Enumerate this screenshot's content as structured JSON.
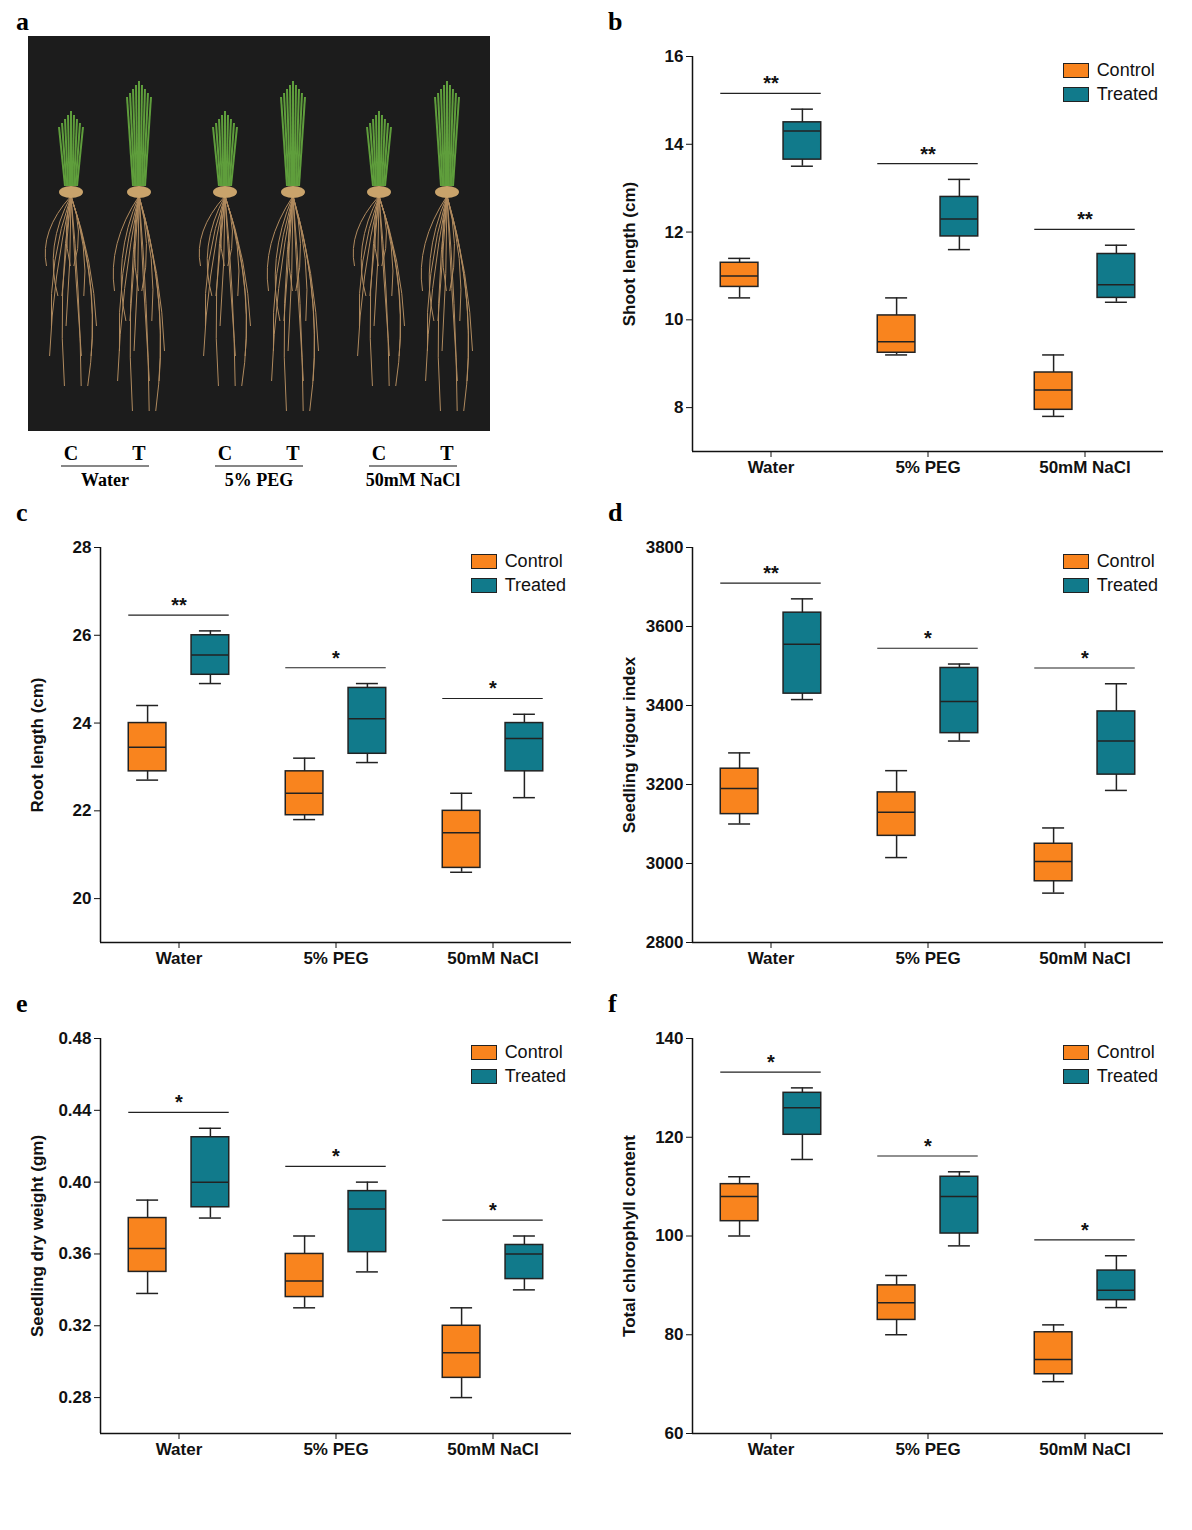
{
  "panel_a": {
    "panel": "a",
    "labels": [
      {
        "group": "Water",
        "left": "C",
        "right": "T"
      },
      {
        "group": "5% PEG",
        "left": "C",
        "right": "T"
      },
      {
        "group": "50mM NaCl",
        "left": "C",
        "right": "T"
      }
    ]
  },
  "chart_data": [
    {
      "type": "box",
      "panel": "b",
      "y_label": "Shoot length (cm)",
      "categories": [
        "Water",
        "5% PEG",
        "50mM NaCl"
      ],
      "series": [
        {
          "name": "Control",
          "color": "#f9841e",
          "values": [
            {
              "min": 10.5,
              "q1": 10.75,
              "median": 11.0,
              "q3": 11.3,
              "max": 11.4
            },
            {
              "min": 9.2,
              "q1": 9.25,
              "median": 9.5,
              "q3": 10.1,
              "max": 10.5
            },
            {
              "min": 7.8,
              "q1": 7.95,
              "median": 8.4,
              "q3": 8.8,
              "max": 9.2
            }
          ]
        },
        {
          "name": "Treated",
          "color": "#117a8b",
          "values": [
            {
              "min": 13.5,
              "q1": 13.65,
              "median": 14.3,
              "q3": 14.5,
              "max": 14.8
            },
            {
              "min": 11.6,
              "q1": 11.9,
              "median": 12.3,
              "q3": 12.8,
              "max": 13.2
            },
            {
              "min": 10.4,
              "q1": 10.5,
              "median": 10.8,
              "q3": 11.5,
              "max": 11.7
            }
          ]
        }
      ],
      "significance": [
        "**",
        "**",
        "**"
      ],
      "ylim": [
        7,
        16
      ],
      "yticks": [
        8,
        10,
        12,
        14,
        16
      ],
      "legend": "top-right"
    },
    {
      "type": "box",
      "panel": "c",
      "y_label": "Root length (cm)",
      "categories": [
        "Water",
        "5% PEG",
        "50mM NaCl"
      ],
      "series": [
        {
          "name": "Control",
          "color": "#f9841e",
          "values": [
            {
              "min": 22.7,
              "q1": 22.9,
              "median": 23.45,
              "q3": 24.0,
              "max": 24.4
            },
            {
              "min": 21.8,
              "q1": 21.9,
              "median": 22.4,
              "q3": 22.9,
              "max": 23.2
            },
            {
              "min": 20.6,
              "q1": 20.7,
              "median": 21.5,
              "q3": 22.0,
              "max": 22.4
            }
          ]
        },
        {
          "name": "Treated",
          "color": "#117a8b",
          "values": [
            {
              "min": 24.9,
              "q1": 25.1,
              "median": 25.55,
              "q3": 26.0,
              "max": 26.1
            },
            {
              "min": 23.1,
              "q1": 23.3,
              "median": 24.1,
              "q3": 24.8,
              "max": 24.9
            },
            {
              "min": 22.3,
              "q1": 22.9,
              "median": 23.65,
              "q3": 24.0,
              "max": 24.2
            }
          ]
        }
      ],
      "significance": [
        "**",
        "*",
        "*"
      ],
      "ylim": [
        19,
        28
      ],
      "yticks": [
        20,
        22,
        24,
        26,
        28
      ],
      "legend": "top-right"
    },
    {
      "type": "box",
      "panel": "d",
      "y_label": "Seedling vigour index",
      "categories": [
        "Water",
        "5% PEG",
        "50mM NaCl"
      ],
      "series": [
        {
          "name": "Control",
          "color": "#f9841e",
          "values": [
            {
              "min": 3100,
              "q1": 3125,
              "median": 3190,
              "q3": 3240,
              "max": 3280
            },
            {
              "min": 3015,
              "q1": 3070,
              "median": 3130,
              "q3": 3180,
              "max": 3235
            },
            {
              "min": 2925,
              "q1": 2955,
              "median": 3005,
              "q3": 3050,
              "max": 3090
            }
          ]
        },
        {
          "name": "Treated",
          "color": "#117a8b",
          "values": [
            {
              "min": 3415,
              "q1": 3430,
              "median": 3555,
              "q3": 3635,
              "max": 3670
            },
            {
              "min": 3310,
              "q1": 3330,
              "median": 3410,
              "q3": 3495,
              "max": 3505
            },
            {
              "min": 3185,
              "q1": 3225,
              "median": 3310,
              "q3": 3385,
              "max": 3455
            }
          ]
        }
      ],
      "significance": [
        "**",
        "*",
        "*"
      ],
      "ylim": [
        2800,
        3800
      ],
      "yticks": [
        2800,
        3000,
        3200,
        3400,
        3600,
        3800
      ],
      "legend": "top-right"
    },
    {
      "type": "box",
      "panel": "e",
      "y_label": "Seedling dry weight (gm)",
      "categories": [
        "Water",
        "5% PEG",
        "50mM NaCl"
      ],
      "series": [
        {
          "name": "Control",
          "color": "#f9841e",
          "values": [
            {
              "min": 0.338,
              "q1": 0.35,
              "median": 0.363,
              "q3": 0.38,
              "max": 0.39
            },
            {
              "min": 0.33,
              "q1": 0.336,
              "median": 0.345,
              "q3": 0.36,
              "max": 0.37
            },
            {
              "min": 0.28,
              "q1": 0.291,
              "median": 0.305,
              "q3": 0.32,
              "max": 0.33
            }
          ]
        },
        {
          "name": "Treated",
          "color": "#117a8b",
          "values": [
            {
              "min": 0.38,
              "q1": 0.386,
              "median": 0.4,
              "q3": 0.425,
              "max": 0.43
            },
            {
              "min": 0.35,
              "q1": 0.361,
              "median": 0.385,
              "q3": 0.395,
              "max": 0.4
            },
            {
              "min": 0.34,
              "q1": 0.346,
              "median": 0.36,
              "q3": 0.365,
              "max": 0.37
            }
          ]
        }
      ],
      "significance": [
        "*",
        "*",
        "*"
      ],
      "ylim": [
        0.26,
        0.48
      ],
      "yticks": [
        0.28,
        0.32,
        0.36,
        {
          "value": 0.4,
          "label": "0.40"
        },
        0.44,
        0.48
      ],
      "legend": "top-right"
    },
    {
      "type": "box",
      "panel": "f",
      "y_label": "Total chlorophyll content",
      "categories": [
        "Water",
        "5% PEG",
        "50mM NaCl"
      ],
      "series": [
        {
          "name": "Control",
          "color": "#f9841e",
          "values": [
            {
              "min": 100,
              "q1": 103,
              "median": 108,
              "q3": 110.5,
              "max": 112
            },
            {
              "min": 80,
              "q1": 83,
              "median": 86.5,
              "q3": 90,
              "max": 92
            },
            {
              "min": 70.5,
              "q1": 72,
              "median": 75,
              "q3": 80.5,
              "max": 82
            }
          ]
        },
        {
          "name": "Treated",
          "color": "#117a8b",
          "values": [
            {
              "min": 115.5,
              "q1": 120.5,
              "median": 126,
              "q3": 129,
              "max": 130
            },
            {
              "min": 98,
              "q1": 100.5,
              "median": 108,
              "q3": 112,
              "max": 113
            },
            {
              "min": 85.5,
              "q1": 87,
              "median": 89,
              "q3": 93,
              "max": 96
            }
          ]
        }
      ],
      "significance": [
        "*",
        "*",
        "*"
      ],
      "ylim": [
        60,
        140
      ],
      "yticks": [
        60,
        80,
        100,
        120,
        140
      ],
      "legend": "top-right"
    }
  ]
}
